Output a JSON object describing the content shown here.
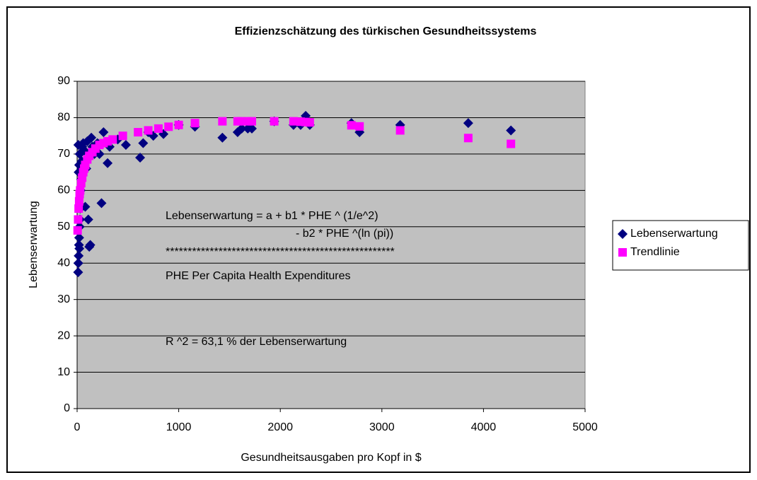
{
  "chart_data": {
    "type": "scatter",
    "title": "Effizienzschätzung des türkischen Gesundheitssystems",
    "x_label": "Gesundheitsausgaben pro Kopf in $",
    "y_label": "Lebenserwartung",
    "annotations": [
      "Lebenserwartung = a + b1 * PHE ^ (1/e^2)",
      "- b2 * PHE ^(ln (pi))",
      "****************************************************",
      "PHE Per Capita Health Expenditures",
      "R ^2 = 63,1 % der Lebenserwartung"
    ],
    "xlim": [
      0,
      5000
    ],
    "xticks": [
      0,
      1000,
      2000,
      3000,
      4000,
      5000
    ],
    "ylim": [
      0,
      90
    ],
    "yticks": [
      0,
      10,
      20,
      30,
      40,
      50,
      60,
      70,
      80,
      90
    ],
    "grid": true,
    "legend": "right",
    "series": [
      {
        "name": "Lebenserwartung",
        "color": "#000080",
        "marker": "diamond",
        "x": [
          10,
          12,
          15,
          18,
          20,
          22,
          25,
          28,
          30,
          15,
          20,
          12,
          25,
          35,
          40,
          45,
          50,
          60,
          70,
          80,
          90,
          100,
          110,
          120,
          130,
          140,
          150,
          170,
          200,
          220,
          240,
          260,
          300,
          320,
          400,
          480,
          620,
          650,
          700,
          750,
          850,
          1000,
          1160,
          1430,
          1580,
          1620,
          1680,
          1720,
          1940,
          2130,
          2200,
          2250,
          2290,
          2700,
          2780,
          3180,
          3850,
          4270
        ],
        "values": [
          37.5,
          40,
          42,
          45,
          47,
          44,
          50,
          52,
          55,
          65,
          67,
          72.5,
          70,
          60,
          63,
          68,
          72,
          73,
          71,
          55.5,
          66,
          73.5,
          52,
          44.5,
          45,
          74.5,
          72,
          70,
          73,
          70,
          56.5,
          76,
          67.5,
          72,
          74,
          72.5,
          69,
          73,
          76,
          75,
          75.5,
          78,
          77.5,
          74.5,
          76,
          77,
          77,
          77,
          79,
          78,
          78,
          80.5,
          78,
          78.5,
          76,
          78,
          78.5,
          76.5
        ]
      },
      {
        "name": "Trendlinie",
        "color": "#ff00ff",
        "marker": "square",
        "x": [
          5,
          10,
          15,
          20,
          25,
          30,
          40,
          50,
          60,
          70,
          80,
          100,
          120,
          150,
          180,
          220,
          260,
          300,
          350,
          450,
          600,
          700,
          800,
          900,
          1000,
          1160,
          1430,
          1580,
          1620,
          1680,
          1720,
          1940,
          2130,
          2200,
          2250,
          2290,
          2700,
          2780,
          3180,
          3850,
          4270
        ],
        "values": [
          49,
          52,
          55,
          57,
          59,
          60,
          62,
          63.5,
          65,
          66,
          67,
          68.5,
          69.5,
          70.5,
          71.5,
          72.5,
          73,
          73.5,
          74,
          75,
          76,
          76.5,
          77,
          77.5,
          78,
          78.5,
          79,
          79,
          79,
          79,
          79,
          79,
          79,
          78.9,
          78.8,
          78.7,
          77.9,
          77.6,
          76.5,
          74.4,
          72.8
        ]
      }
    ]
  }
}
